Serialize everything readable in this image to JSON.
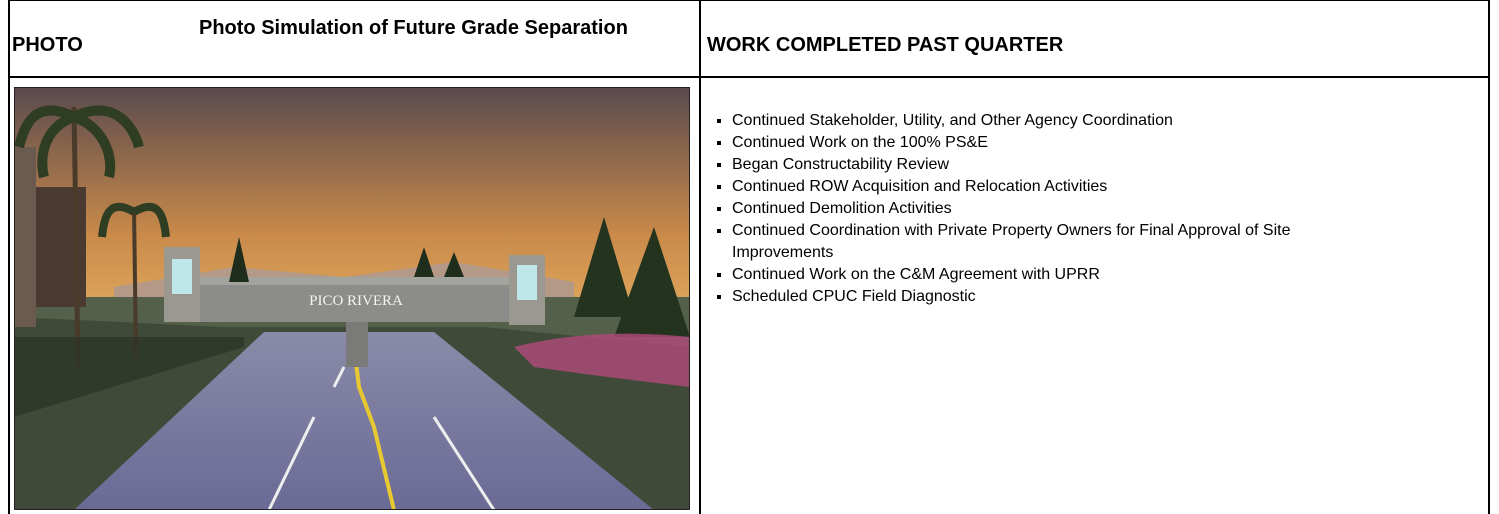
{
  "header": {
    "photo_label": "PHOTO",
    "photo_caption": "Photo Simulation of Future Grade Separation",
    "work_title": "WORK COMPLETED PAST QUARTER"
  },
  "photo": {
    "sign_text": "PICO RIVERA"
  },
  "work_items": [
    "Continued Stakeholder, Utility, and Other Agency Coordination",
    "Continued Work on the 100% PS&E",
    "Began Constructability Review",
    "Continued ROW Acquisition and Relocation Activities",
    "Continued Demolition Activities",
    "Continued Coordination with Private Property Owners for Final Approval of Site Improvements",
    "Continued Work on the C&M Agreement with UPRR",
    "Scheduled CPUC Field Diagnostic"
  ]
}
